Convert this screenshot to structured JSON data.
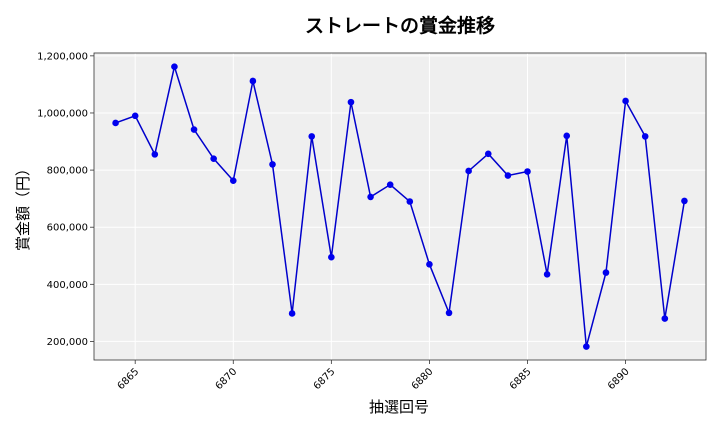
{
  "chart_data": {
    "type": "line",
    "title": "ストレートの賞金推移",
    "xlabel": "抽選回号",
    "ylabel": "賞金額（円）",
    "xlim": [
      6862.9,
      6894.1
    ],
    "ylim": [
      135000,
      1210000
    ],
    "x_ticks": [
      6865,
      6870,
      6875,
      6880,
      6885,
      6890
    ],
    "y_ticks": [
      200000,
      400000,
      600000,
      800000,
      1000000,
      1200000
    ],
    "y_tick_labels": [
      "200,000",
      "400,000",
      "600,000",
      "800,000",
      "1,000,000",
      "1,200,000"
    ],
    "grid": true,
    "colors": {
      "line": "#0000cc",
      "marker": "#0000ee",
      "plot_bg": "#efefef"
    },
    "x": [
      6864,
      6865,
      6866,
      6867,
      6868,
      6869,
      6870,
      6871,
      6872,
      6873,
      6874,
      6875,
      6876,
      6877,
      6878,
      6879,
      6880,
      6881,
      6882,
      6883,
      6884,
      6885,
      6886,
      6887,
      6888,
      6889,
      6890,
      6891,
      6892,
      6893
    ],
    "y": [
      965000,
      990000,
      855000,
      1162000,
      942000,
      840000,
      763000,
      1112000,
      820000,
      298000,
      918000,
      495000,
      1038000,
      706000,
      749000,
      690000,
      470000,
      300000,
      797000,
      857000,
      781000,
      795000,
      435000,
      920000,
      182000,
      441000,
      1042000,
      918000,
      280000,
      692000
    ]
  }
}
